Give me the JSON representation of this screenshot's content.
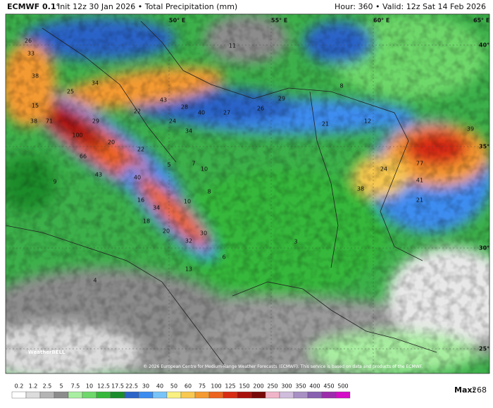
{
  "header": {
    "model": "ECMWF 0.1°",
    "info": "Init 12z 30 Jan 2026 • Total Precipitation (mm)",
    "valid": "Hour: 360 • Valid: 12z Sat 14 Feb 2026"
  },
  "map": {
    "grid_labels": [
      "50° E",
      "55° E",
      "60° E",
      "65° E",
      "40° N",
      "35° N",
      "30° N",
      "25° N"
    ],
    "labels": [
      "26",
      "33",
      "38",
      "34",
      "25",
      "15",
      "38",
      "71",
      "29",
      "100",
      "20",
      "66",
      "22",
      "43",
      "9",
      "40",
      "43",
      "28",
      "40",
      "27",
      "26",
      "29",
      "22",
      "24",
      "34",
      "12",
      "21",
      "39",
      "77",
      "41",
      "21",
      "38",
      "24",
      "8",
      "34",
      "10",
      "16",
      "18",
      "20",
      "30",
      "32",
      "6",
      "13",
      "4",
      "3",
      "11",
      "8",
      "10",
      "5",
      "7"
    ],
    "credit": "© 2026 European Centre for Medium-Range Weather Forecasts (ECMWF). This service is based on data and products of the ECMWF.",
    "logo": "WeatherBELL"
  },
  "colorbar": {
    "labels": [
      0.2,
      1.2,
      2.5,
      5,
      7.5,
      10,
      12.5,
      17.5,
      22.5,
      30,
      40,
      50,
      60,
      75,
      100,
      125,
      150,
      200,
      250,
      300,
      350,
      400,
      450,
      500
    ],
    "colors": [
      "#ffffff",
      "#dcdcdc",
      "#b4b4b4",
      "#8c8c8c",
      "#a8eea0",
      "#6ed86a",
      "#36b83a",
      "#1a8c2a",
      "#2a64c8",
      "#3c8cf0",
      "#78c4f8",
      "#f8f080",
      "#f8c850",
      "#f49a30",
      "#ec6420",
      "#d82c14",
      "#a8100c",
      "#780808",
      "#f0b4c8",
      "#d0bcdc",
      "#a890c4",
      "#8860b0",
      "#9c2cac",
      "#d40cc8"
    ],
    "max_label": "Max:",
    "max_value": 268
  }
}
